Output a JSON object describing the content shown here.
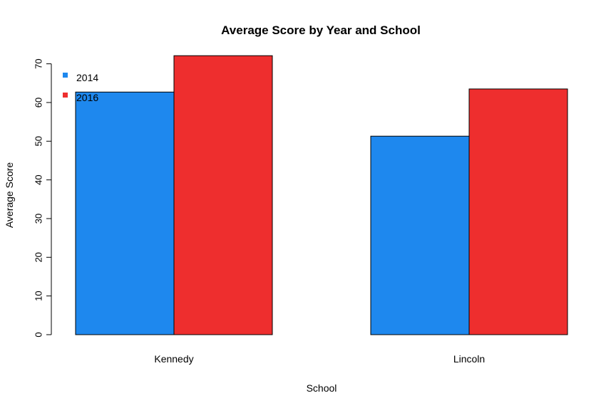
{
  "chart_data": {
    "type": "bar",
    "title": "Average Score by Year and School",
    "xlabel": "School",
    "ylabel": "Average Score",
    "categories": [
      "Kennedy",
      "Lincoln"
    ],
    "series": [
      {
        "name": "2014",
        "color": "#1E88EE",
        "values": [
          62.7,
          51.3
        ]
      },
      {
        "name": "2016",
        "color": "#EE2E2E",
        "values": [
          72.1,
          63.5
        ]
      }
    ],
    "ylim": [
      0,
      70
    ],
    "yticks": [
      "0",
      "10",
      "20",
      "30",
      "40",
      "50",
      "60",
      "70"
    ],
    "ytick_values": [
      0,
      10,
      20,
      30,
      40,
      50,
      60,
      70
    ],
    "legend": "top-left",
    "grid": false
  }
}
